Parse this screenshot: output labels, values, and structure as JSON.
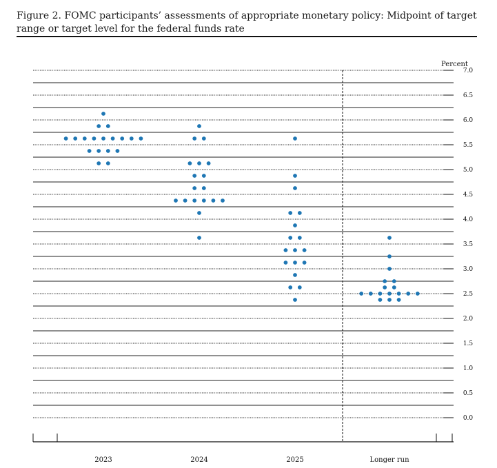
{
  "caption": {
    "title": "Figure 2.  FOMC participants’ assessments of appropriate monetary policy: Midpoint of target range or target level for the federal funds rate"
  },
  "chart_data": {
    "type": "scatter",
    "ylabel": "Percent",
    "ylim": [
      0,
      7.0
    ],
    "y_ticks": [
      "7.0",
      "6.5",
      "6.0",
      "5.5",
      "5.0",
      "4.5",
      "4.0",
      "3.5",
      "3.0",
      "2.5",
      "2.0",
      "1.5",
      "1.0",
      "0.5",
      "0.0"
    ],
    "categories": [
      "2023",
      "2024",
      "2025",
      "Longer run"
    ],
    "dot_color": "#1f77b4",
    "dots": [
      {
        "category": "2023",
        "rows": [
          {
            "y": 6.125,
            "count": 1
          },
          {
            "y": 5.875,
            "count": 2
          },
          {
            "y": 5.625,
            "count": 9
          },
          {
            "y": 5.375,
            "count": 4
          },
          {
            "y": 5.125,
            "count": 2
          }
        ]
      },
      {
        "category": "2024",
        "rows": [
          {
            "y": 5.875,
            "count": 1
          },
          {
            "y": 5.625,
            "count": 2
          },
          {
            "y": 5.125,
            "count": 3
          },
          {
            "y": 4.875,
            "count": 2
          },
          {
            "y": 4.625,
            "count": 2
          },
          {
            "y": 4.375,
            "count": 6
          },
          {
            "y": 4.125,
            "count": 1
          },
          {
            "y": 3.625,
            "count": 1
          }
        ]
      },
      {
        "category": "2025",
        "rows": [
          {
            "y": 5.625,
            "count": 1
          },
          {
            "y": 4.875,
            "count": 1
          },
          {
            "y": 4.625,
            "count": 1
          },
          {
            "y": 4.125,
            "count": 2
          },
          {
            "y": 3.875,
            "count": 1
          },
          {
            "y": 3.625,
            "count": 2
          },
          {
            "y": 3.375,
            "count": 3
          },
          {
            "y": 3.125,
            "count": 3
          },
          {
            "y": 2.875,
            "count": 1
          },
          {
            "y": 2.625,
            "count": 2
          },
          {
            "y": 2.375,
            "count": 1
          }
        ]
      },
      {
        "category": "Longer run",
        "rows": [
          {
            "y": 3.625,
            "count": 1
          },
          {
            "y": 3.25,
            "count": 1
          },
          {
            "y": 3.0,
            "count": 1
          },
          {
            "y": 2.75,
            "count": 2
          },
          {
            "y": 2.625,
            "count": 2
          },
          {
            "y": 2.5,
            "count": 7
          },
          {
            "y": 2.375,
            "count": 3
          }
        ]
      }
    ],
    "divider_before": "Longer run",
    "grid": true
  }
}
